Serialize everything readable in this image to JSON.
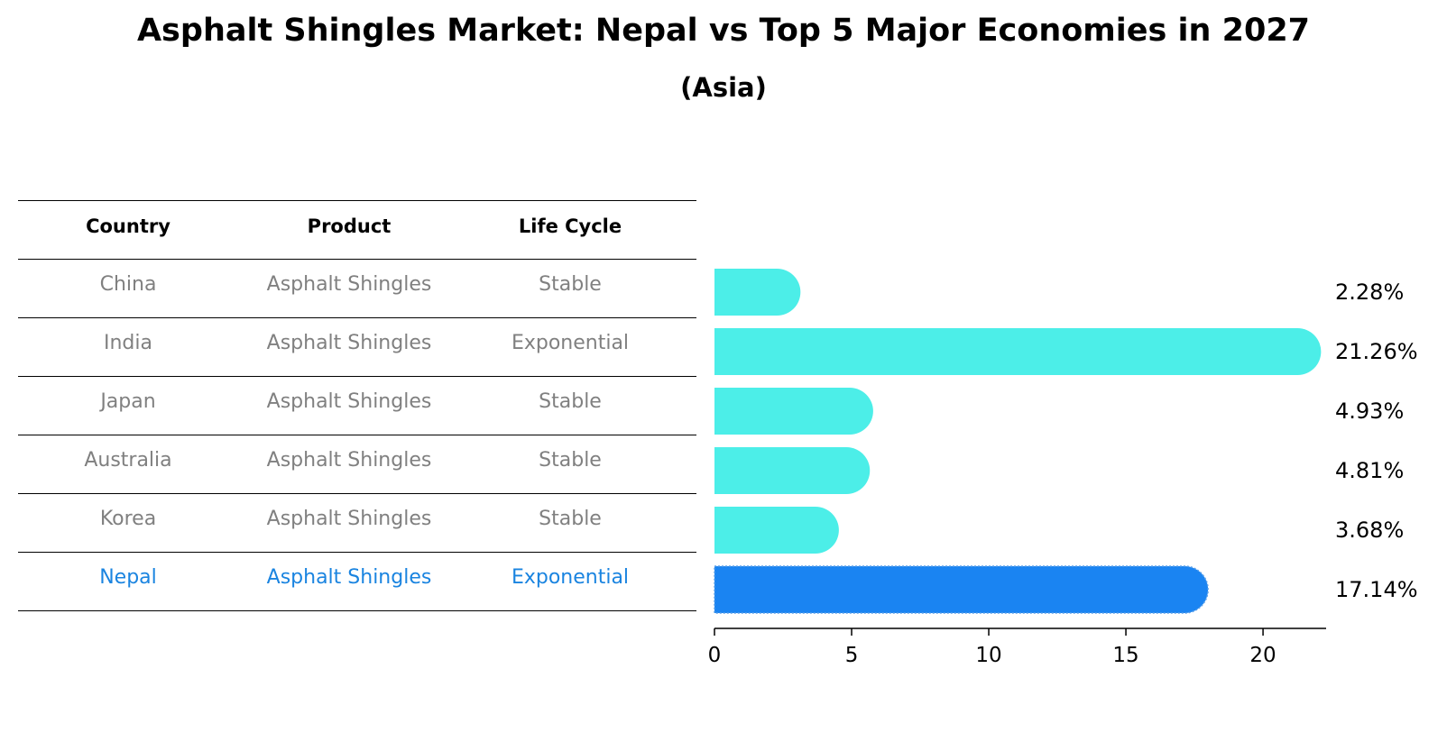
{
  "title": "Asphalt Shingles Market: Nepal vs Top 5 Major Economies in 2027",
  "subtitle": "(Asia)",
  "table": {
    "headers": [
      "Country",
      "Product",
      "Life Cycle"
    ],
    "rows": [
      {
        "country": "China",
        "product": "Asphalt Shingles",
        "life_cycle": "Stable"
      },
      {
        "country": "India",
        "product": "Asphalt Shingles",
        "life_cycle": "Exponential"
      },
      {
        "country": "Japan",
        "product": "Asphalt Shingles",
        "life_cycle": "Stable"
      },
      {
        "country": "Australia",
        "product": "Asphalt Shingles",
        "life_cycle": "Stable"
      },
      {
        "country": "Korea",
        "product": "Asphalt Shingles",
        "life_cycle": "Stable"
      },
      {
        "country": "Nepal",
        "product": "Asphalt Shingles",
        "life_cycle": "Exponential"
      }
    ]
  },
  "colors": {
    "bar": "#4ceee8",
    "highlight_bar": "#1a84f2",
    "highlight_text": "#1a84e0",
    "row_text": "#808080"
  },
  "chart_data": {
    "type": "bar",
    "orientation": "horizontal",
    "categories": [
      "China",
      "India",
      "Japan",
      "Australia",
      "Korea",
      "Nepal"
    ],
    "values": [
      2.28,
      21.26,
      4.93,
      4.81,
      3.68,
      17.14
    ],
    "value_labels": [
      "2.28%",
      "21.26%",
      "4.93%",
      "4.81%",
      "3.68%",
      "17.14%"
    ],
    "highlight": "Nepal",
    "xlim": [
      0,
      22.3
    ],
    "xticks": [
      0,
      5,
      10,
      15,
      20
    ],
    "xtick_labels": [
      "0",
      "5",
      "10",
      "15",
      "20"
    ],
    "xlabel": "",
    "ylabel": "",
    "grid": false
  }
}
